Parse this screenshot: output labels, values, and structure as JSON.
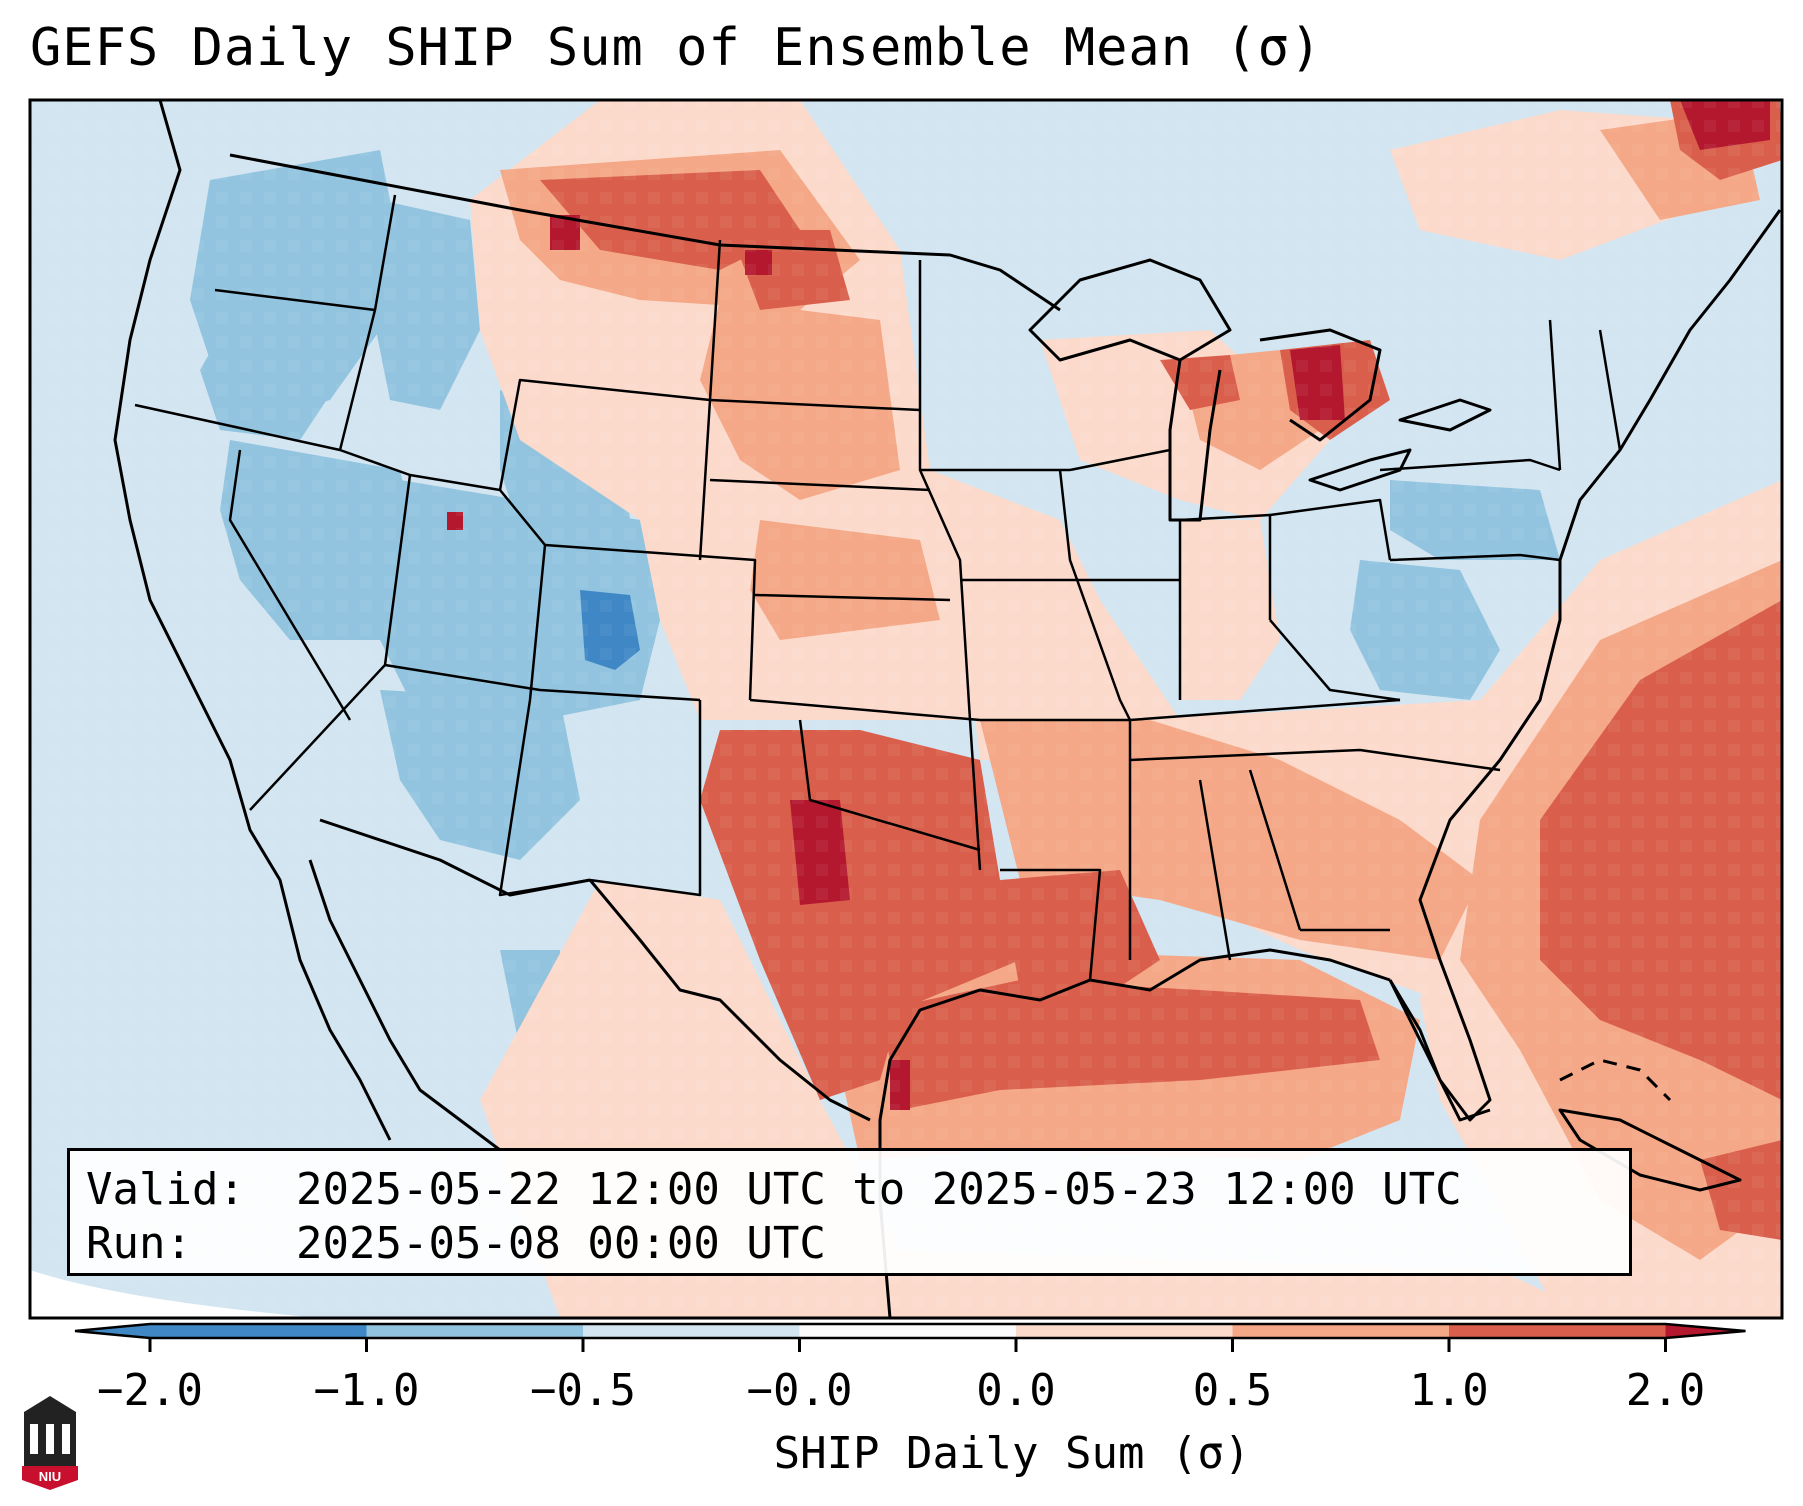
{
  "title": "GEFS Daily SHIP Sum of Ensemble Mean (σ)",
  "valid_label": "Valid:",
  "valid_value": "2025-05-22 12:00 UTC to 2025-05-23 12:00 UTC",
  "run_label": "Run:",
  "run_value": "2025-05-08 00:00 UTC",
  "colorbar": {
    "label": "SHIP Daily Sum (σ)",
    "ticks": [
      "−2.0",
      "−1.0",
      "−0.5",
      "−0.0",
      "0.0",
      "0.5",
      "1.0",
      "2.0"
    ],
    "colors": [
      "#3f88c5",
      "#92c4df",
      "#d2e5f1",
      "#fbfbfb",
      "#fbdacb",
      "#f4a887",
      "#d95f4c",
      "#b4182e"
    ]
  },
  "logo": {
    "icon": "university-building-icon",
    "text": "NIU"
  }
}
